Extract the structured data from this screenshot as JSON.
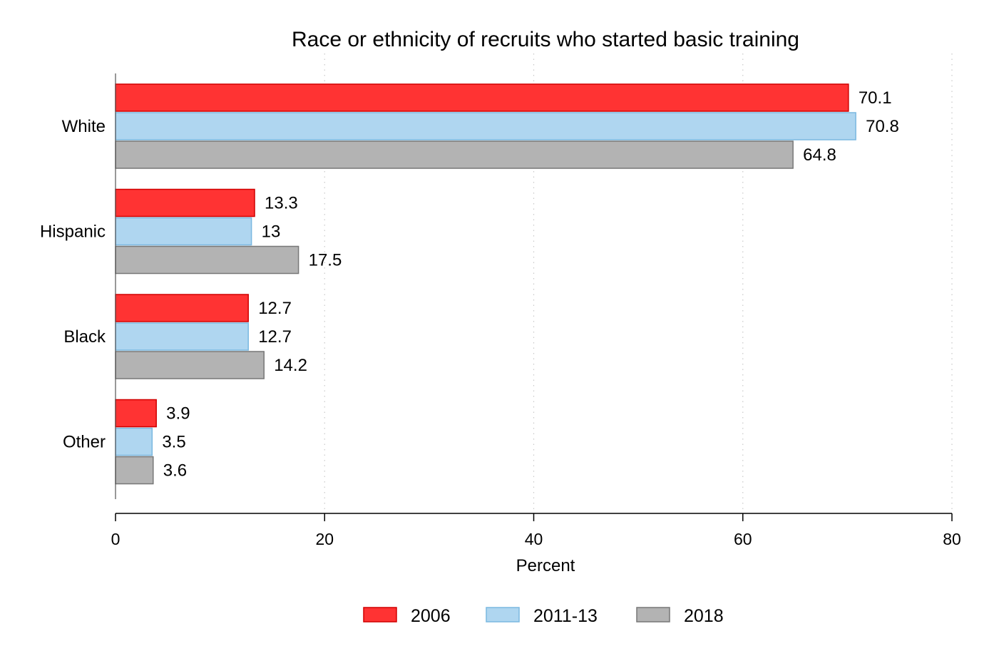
{
  "chart_data": {
    "type": "bar",
    "orientation": "horizontal",
    "title": "Race or ethnicity of recruits who started basic training",
    "xlabel": "Percent",
    "ylabel": "",
    "categories": [
      "White",
      "Hispanic",
      "Black",
      "Other"
    ],
    "series": [
      {
        "name": "2006",
        "values": [
          70.1,
          13.3,
          12.7,
          3.9
        ],
        "labels": [
          "70.1",
          "13.3",
          "12.7",
          "3.9"
        ],
        "color": "#ff3333",
        "stroke": "#d00000"
      },
      {
        "name": "2011-13",
        "values": [
          70.8,
          13,
          12.7,
          3.5
        ],
        "labels": [
          "70.8",
          "13",
          "12.7",
          "3.5"
        ],
        "color": "#afd6f0",
        "stroke": "#7ab8e0"
      },
      {
        "name": "2018",
        "values": [
          64.8,
          17.5,
          14.2,
          3.6
        ],
        "labels": [
          "64.8",
          "17.5",
          "14.2",
          "3.6"
        ],
        "color": "#b3b3b3",
        "stroke": "#777777"
      }
    ],
    "xlim": [
      0,
      80
    ],
    "xticks": [
      0,
      20,
      40,
      60,
      80
    ],
    "xtick_labels": [
      "0",
      "20",
      "40",
      "60",
      "80"
    ],
    "grid": "vertical dotted",
    "legend_position": "bottom"
  }
}
